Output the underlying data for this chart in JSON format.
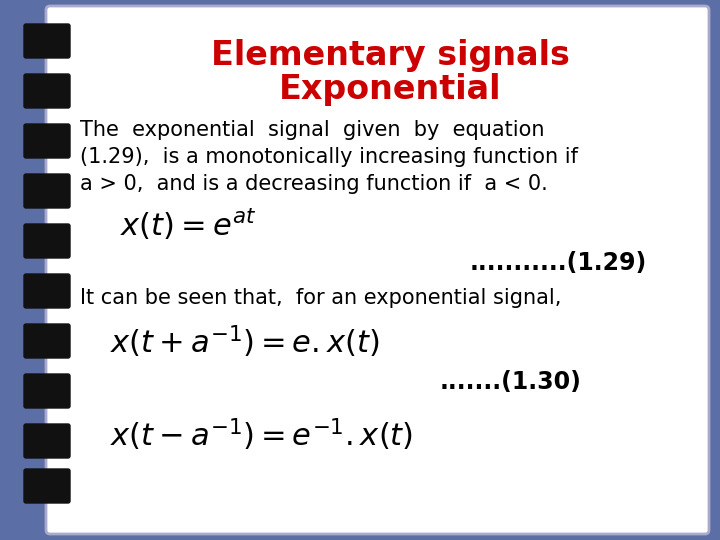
{
  "title_line1": "Elementary signals",
  "title_line2": "Exponential",
  "title_color": "#cc0000",
  "title_fontsize": 24,
  "body_fontsize": 15,
  "eq_fontsize": 19,
  "ref_fontsize": 17,
  "background_outer": "#5b6fa6",
  "background_inner": "#ffffff",
  "text_color": "#000000",
  "spiral_color": "#1a1a1a",
  "para1_line1": "The  exponential  signal  given  by  equation",
  "para1_line2": "(1.29),  is a monotonically increasing function if",
  "para1_line3": "a > 0,  and is a decreasing function if  a < 0.",
  "eq1": "$x(t) = e^{at}$",
  "eq1_ref": "...........(1.29)",
  "para2": "It can be seen that,  for an exponential signal,",
  "eq2": "$x(t + a^{-1}) = e.x(t)$",
  "eq2_ref": ".......(1.30)",
  "eq3": "$x(t - a^{-1}) = e^{-1}.x(t)$"
}
